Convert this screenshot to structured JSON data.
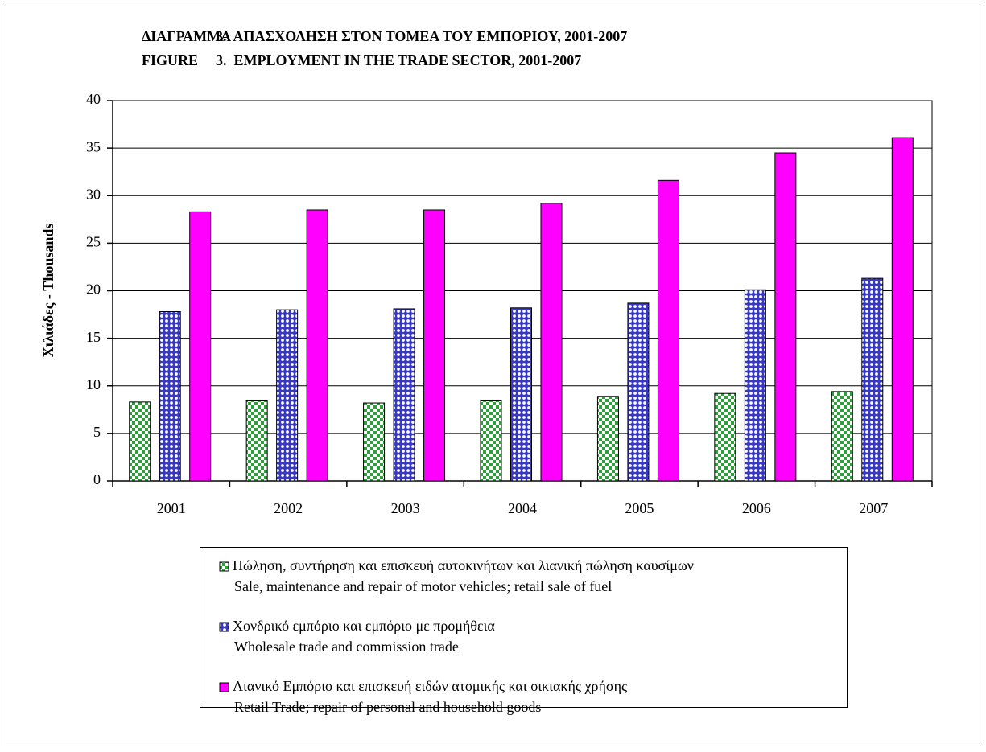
{
  "chart_data": {
    "type": "bar",
    "title": [
      {
        "label": "ΔΙΑΓΡΑΜΜΑ",
        "text": "3.  ΑΠΑΣΧΟΛΗΣΗ ΣΤΟΝ ΤΟΜΕΑ ΤΟΥ ΕΜΠΟΡΙΟΥ, 2001-2007"
      },
      {
        "label": "FIGURE",
        "text": "3.  EMPLOYMENT IN THE TRADE SECTOR, 2001-2007"
      }
    ],
    "y_label": "Χιλιάδες - Thousands",
    "categories": [
      "2001",
      "2002",
      "2003",
      "2004",
      "2005",
      "2006",
      "2007"
    ],
    "series": [
      {
        "name": [
          "Πώληση, συντήρηση και επισκευή αυτοκινήτων και λιανική πώληση καυσίμων",
          "Sale, maintenance and repair of motor vehicles; retail sale of fuel"
        ],
        "color": "#2e9e3a",
        "pattern": "checker",
        "values": [
          8.3,
          8.5,
          8.2,
          8.5,
          8.9,
          9.2,
          9.4
        ]
      },
      {
        "name": [
          "Χονδρικό εμπόριο και εμπόριο με προμήθεια",
          "Wholesale trade and commission trade"
        ],
        "color": "#3838c8",
        "pattern": "dots",
        "values": [
          17.8,
          18.0,
          18.1,
          18.2,
          18.7,
          20.1,
          21.3
        ]
      },
      {
        "name": [
          "Λιανικό Εμπόριο και επισκευή ειδών ατομικής και οικιακής χρήσης",
          "Retail Trade; repair of personal and household goods"
        ],
        "color": "#ff00ff",
        "pattern": "solid",
        "values": [
          28.3,
          28.5,
          28.5,
          29.2,
          31.6,
          34.5,
          36.1
        ]
      }
    ],
    "ylim": [
      0,
      40
    ],
    "yticks": [
      0,
      5,
      10,
      15,
      20,
      25,
      30,
      35,
      40
    ],
    "grid": true,
    "legend": "bottom"
  }
}
